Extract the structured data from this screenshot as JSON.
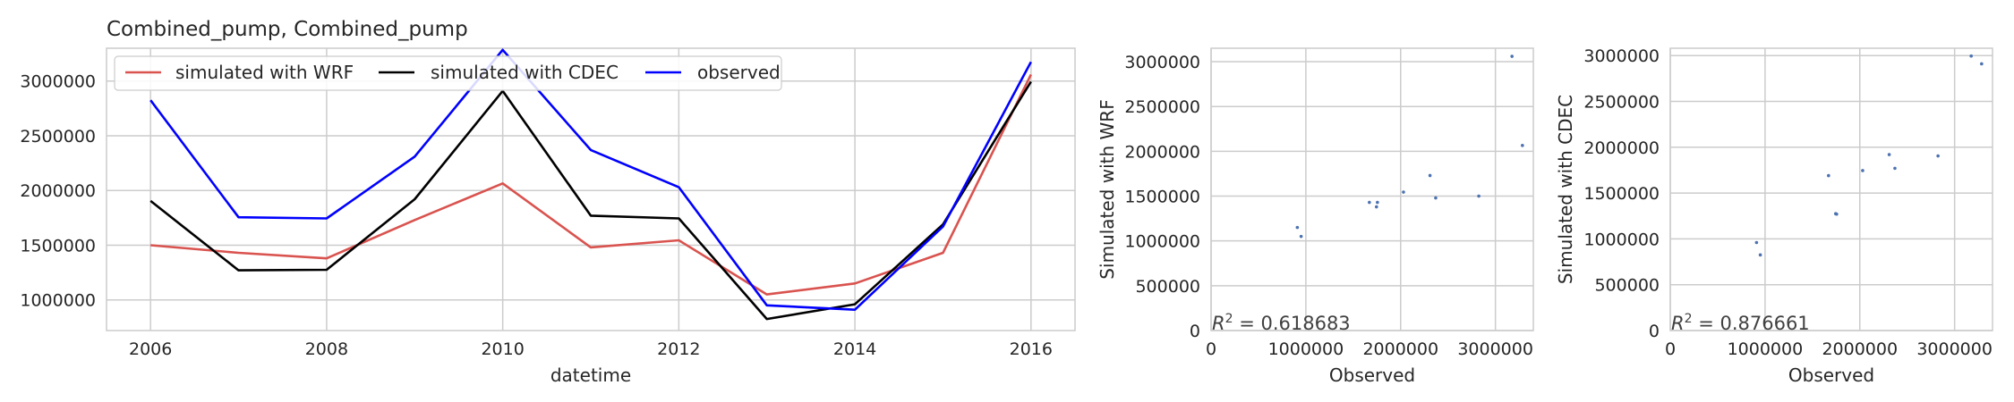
{
  "chart_data": [
    {
      "type": "line",
      "title": "Combined_pump, Combined_pump",
      "xlabel": "datetime",
      "ylabel": "",
      "x": [
        2006,
        2007,
        2008,
        2009,
        2010,
        2011,
        2012,
        2013,
        2014,
        2015,
        2016
      ],
      "xlim": [
        2005.5,
        2016.5
      ],
      "ylim": [
        720000,
        3300000
      ],
      "xticks": [
        2006,
        2008,
        2010,
        2012,
        2014,
        2016
      ],
      "yticks": [
        1000000,
        1500000,
        2000000,
        2500000,
        3000000
      ],
      "grid": true,
      "legend_position": "top-left",
      "series": [
        {
          "name": "simulated with WRF",
          "color": "#d9534f",
          "values": [
            1500000,
            1430000,
            1380000,
            1730000,
            2065000,
            1480000,
            1545000,
            1050000,
            1150000,
            1430000,
            3060000
          ]
        },
        {
          "name": "simulated with CDEC",
          "color": "#000000",
          "values": [
            1905000,
            1270000,
            1275000,
            1920000,
            2910000,
            1770000,
            1745000,
            825000,
            960000,
            1690000,
            2995000
          ]
        },
        {
          "name": "observed",
          "color": "#0000ff",
          "values": [
            2825000,
            1755000,
            1745000,
            2310000,
            3285000,
            2370000,
            2030000,
            950000,
            910000,
            1670000,
            3175000
          ]
        }
      ]
    },
    {
      "type": "scatter",
      "xlabel": "Observed",
      "ylabel": "Simulated with WRF",
      "xlim": [
        0,
        3400000
      ],
      "ylim": [
        0,
        3150000
      ],
      "xticks": [
        0,
        1000000,
        2000000,
        3000000
      ],
      "yticks": [
        0,
        500000,
        1000000,
        1500000,
        2000000,
        2500000,
        3000000
      ],
      "grid": true,
      "annotation": "R^2 = 0.618683",
      "point_color": "#4c72b0",
      "x": [
        910000,
        950000,
        1670000,
        1745000,
        1755000,
        2030000,
        2310000,
        2370000,
        2825000,
        3175000,
        3285000
      ],
      "y": [
        1150000,
        1050000,
        1430000,
        1380000,
        1430000,
        1545000,
        1730000,
        1480000,
        1500000,
        3060000,
        2065000
      ]
    },
    {
      "type": "scatter",
      "xlabel": "Observed",
      "ylabel": "Simulated with CDEC",
      "xlim": [
        0,
        3400000
      ],
      "ylim": [
        0,
        3080000
      ],
      "xticks": [
        0,
        1000000,
        2000000,
        3000000
      ],
      "yticks": [
        0,
        500000,
        1000000,
        1500000,
        2000000,
        2500000,
        3000000
      ],
      "grid": true,
      "annotation": "R^2 = 0.876661",
      "point_color": "#4c72b0",
      "x": [
        910000,
        950000,
        1670000,
        1745000,
        1755000,
        2030000,
        2310000,
        2370000,
        2825000,
        3175000,
        3285000
      ],
      "y": [
        960000,
        825000,
        1690000,
        1275000,
        1270000,
        1745000,
        1920000,
        1770000,
        1905000,
        2995000,
        2910000
      ]
    }
  ]
}
